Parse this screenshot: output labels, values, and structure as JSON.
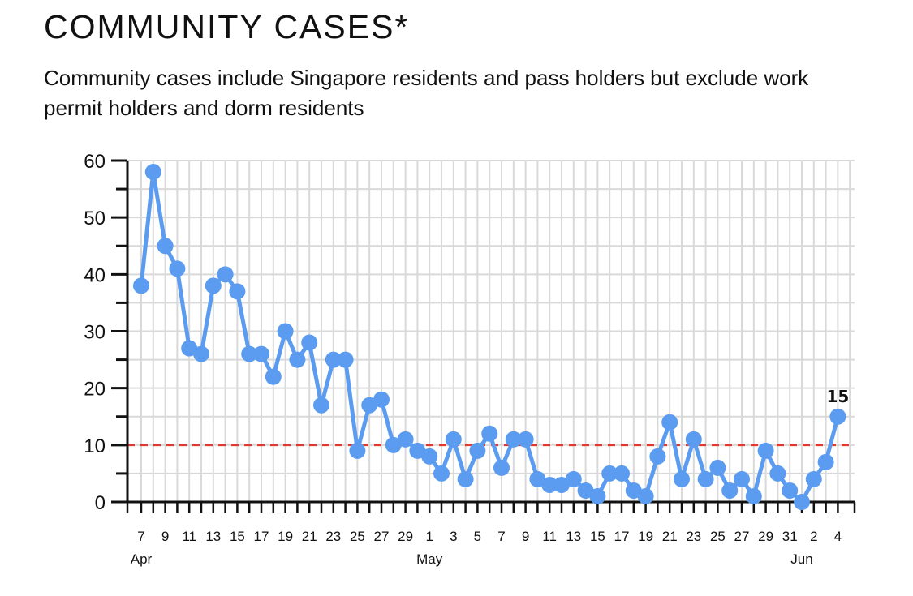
{
  "header": {
    "title": "COMMUNITY CASES*",
    "subtitle": "Community cases include Singapore residents and pass holders but exclude work permit holders and dorm residents"
  },
  "colors": {
    "series": "#5b9cf0",
    "reference_line": "#e03a2f",
    "grid": "#d9d9d9",
    "axis": "#111111"
  },
  "chart_data": {
    "type": "line",
    "title": "COMMUNITY CASES*",
    "xlabel": "",
    "ylabel": "",
    "ylim": [
      0,
      60
    ],
    "yticks": [
      0,
      10,
      20,
      30,
      40,
      50,
      60
    ],
    "grid": true,
    "x": [
      "Apr 7",
      "Apr 8",
      "Apr 9",
      "Apr 10",
      "Apr 11",
      "Apr 12",
      "Apr 13",
      "Apr 14",
      "Apr 15",
      "Apr 16",
      "Apr 17",
      "Apr 18",
      "Apr 19",
      "Apr 20",
      "Apr 21",
      "Apr 22",
      "Apr 23",
      "Apr 24",
      "Apr 25",
      "Apr 26",
      "Apr 27",
      "Apr 28",
      "Apr 29",
      "Apr 30",
      "May 1",
      "May 2",
      "May 3",
      "May 4",
      "May 5",
      "May 6",
      "May 7",
      "May 8",
      "May 9",
      "May 10",
      "May 11",
      "May 12",
      "May 13",
      "May 14",
      "May 15",
      "May 16",
      "May 17",
      "May 18",
      "May 19",
      "May 20",
      "May 21",
      "May 22",
      "May 23",
      "May 24",
      "May 25",
      "May 26",
      "May 27",
      "May 28",
      "May 29",
      "May 30",
      "May 31",
      "Jun 1",
      "Jun 2",
      "Jun 3",
      "Jun 4"
    ],
    "series": [
      {
        "values": [
          38,
          58,
          45,
          41,
          27,
          26,
          38,
          40,
          37,
          26,
          26,
          22,
          30,
          25,
          28,
          17,
          25,
          25,
          9,
          17,
          18,
          10,
          11,
          9,
          8,
          5,
          11,
          4,
          9,
          12,
          6,
          11,
          11,
          4,
          3,
          3,
          4,
          2,
          1,
          5,
          5,
          2,
          1,
          8,
          14,
          4,
          11,
          4,
          6,
          2,
          4,
          1,
          9,
          5,
          2,
          0,
          4,
          7,
          15
        ]
      }
    ],
    "x_tick_labels": [
      "7",
      "9",
      "11",
      "13",
      "15",
      "17",
      "19",
      "21",
      "23",
      "25",
      "27",
      "29",
      "1",
      "3",
      "5",
      "7",
      "9",
      "11",
      "13",
      "15",
      "17",
      "19",
      "21",
      "23",
      "25",
      "27",
      "29",
      "31",
      "2",
      "4"
    ],
    "month_labels": [
      "Apr",
      "May",
      "Jun"
    ],
    "reference_line": {
      "y": 10,
      "style": "dashed"
    },
    "annotations": [
      {
        "x": "Jun 4",
        "text": "15"
      }
    ]
  }
}
